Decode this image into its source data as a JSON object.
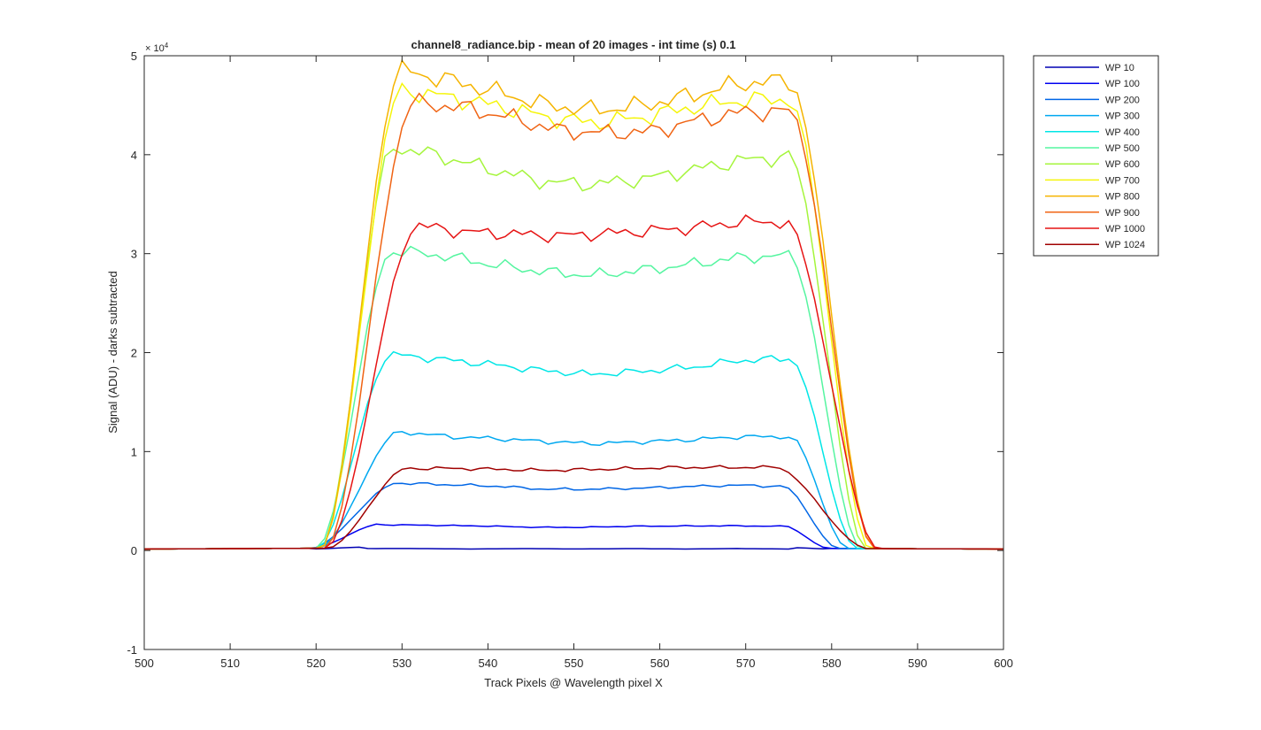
{
  "chart_data": {
    "type": "line",
    "title": "channel8_radiance.bip - mean of 20 images - int time (s) 0.1",
    "xlabel": "Track Pixels @ Wavelength pixel X",
    "ylabel": "Signal (ADU) - darks subtracted",
    "y_exponent_label": "× 10",
    "y_exponent_power": "4",
    "xlim": [
      500,
      600
    ],
    "ylim": [
      -10000,
      50000
    ],
    "x_ticks": [
      500,
      510,
      520,
      530,
      540,
      550,
      560,
      570,
      580,
      590,
      600
    ],
    "x_tick_labels": [
      "500",
      "510",
      "520",
      "530",
      "540",
      "550",
      "560",
      "570",
      "580",
      "590",
      "600"
    ],
    "y_ticks": [
      -10000,
      0,
      10000,
      20000,
      30000,
      40000,
      50000
    ],
    "y_tick_labels": [
      "-1",
      "0",
      "1",
      "2",
      "3",
      "4",
      "5"
    ],
    "grid": false,
    "legend_position": "outside-top-right",
    "series": [
      {
        "name": "WP 10",
        "color": "#0000b3",
        "edges": [
          519.0,
          526.0,
          575.0,
          580.0
        ],
        "plateau": [
          200,
          200,
          150,
          200,
          150,
          200,
          150,
          200,
          150
        ]
      },
      {
        "name": "WP 100",
        "color": "#0000f0",
        "edges": [
          519.0,
          528.0,
          574.0,
          580.0
        ],
        "plateau": [
          2600,
          2550,
          2480,
          2350,
          2350,
          2450,
          2480,
          2500,
          2450
        ]
      },
      {
        "name": "WP 200",
        "color": "#0066e6",
        "edges": [
          519.0,
          530.0,
          574.0,
          581.0
        ],
        "plateau": [
          6800,
          6650,
          6500,
          6200,
          6200,
          6300,
          6450,
          6600,
          6500
        ]
      },
      {
        "name": "WP 300",
        "color": "#00a8f0",
        "edges": [
          520.0,
          530.0,
          575.0,
          582.0
        ],
        "plateau": [
          12000,
          11500,
          11300,
          11000,
          10800,
          11000,
          11200,
          11500,
          11500
        ]
      },
      {
        "name": "WP 400",
        "color": "#00e6e6",
        "edges": [
          520.0,
          529.0,
          575.0,
          583.0
        ],
        "plateau": [
          19800,
          19300,
          18800,
          18200,
          17800,
          18100,
          18500,
          19200,
          19400
        ]
      },
      {
        "name": "WP 500",
        "color": "#55f5a0",
        "edges": [
          520.0,
          529.0,
          575.0,
          583.5
        ],
        "plateau": [
          30300,
          29800,
          28900,
          28200,
          27800,
          28300,
          28900,
          29600,
          29800
        ]
      },
      {
        "name": "WP 600",
        "color": "#a5f53c",
        "edges": [
          520.5,
          529.0,
          575.0,
          584.0
        ],
        "plateau": [
          40800,
          39800,
          38500,
          37300,
          37000,
          37500,
          38400,
          39400,
          39800
        ]
      },
      {
        "name": "WP 700",
        "color": "#f5f50a",
        "edges": [
          520.5,
          530.0,
          575.0,
          584.5
        ],
        "plateau": [
          46500,
          45800,
          44900,
          43800,
          43200,
          43800,
          44800,
          45500,
          45600
        ]
      },
      {
        "name": "WP 800",
        "color": "#f5b400",
        "edges": [
          520.5,
          530.0,
          575.0,
          585.0
        ],
        "plateau": [
          48500,
          47500,
          46300,
          45000,
          44500,
          45000,
          46000,
          47200,
          47500
        ]
      },
      {
        "name": "WP 900",
        "color": "#f06414",
        "edges": [
          521.0,
          531.5,
          575.0,
          585.0
        ],
        "plateau": [
          45200,
          44800,
          43800,
          42500,
          42200,
          42300,
          43400,
          44300,
          44400
        ]
      },
      {
        "name": "WP 1000",
        "color": "#e61414",
        "edges": [
          521.0,
          532.0,
          574.5,
          585.5
        ],
        "plateau": [
          32800,
          32200,
          32000,
          31800,
          32000,
          32300,
          32600,
          33200,
          33200
        ]
      },
      {
        "name": "WP 1024",
        "color": "#a00000",
        "edges": [
          521.0,
          531.0,
          573.0,
          584.5
        ],
        "plateau": [
          8300,
          8300,
          8200,
          8100,
          8200,
          8300,
          8400,
          8400,
          8400
        ]
      }
    ]
  }
}
